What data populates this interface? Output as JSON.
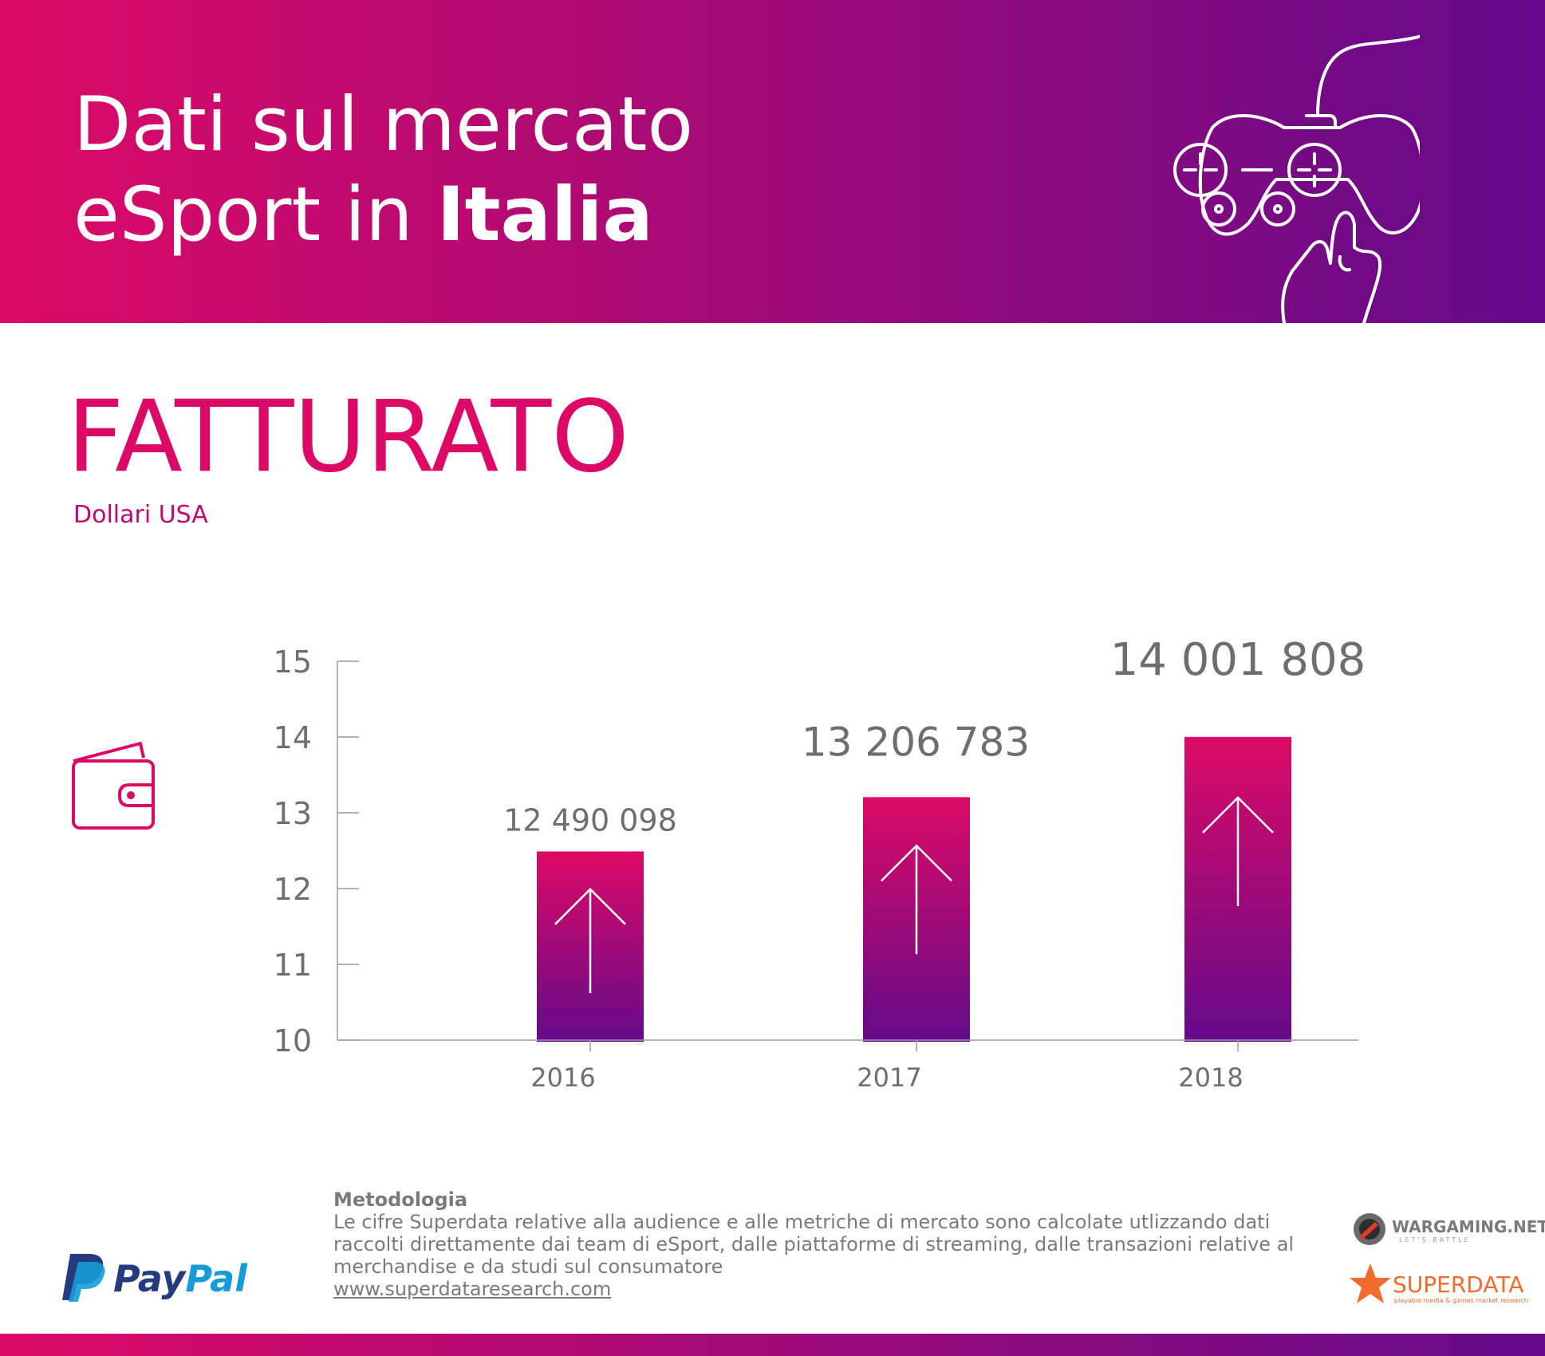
{
  "header": {
    "title_line1": "Dati sul mercato",
    "title_line2_prefix": "eSport in ",
    "title_line2_bold": "Italia"
  },
  "section": {
    "title": "FATTURATO",
    "subtitle": "Dollari USA"
  },
  "colors": {
    "brand_pink": "#dc0a66",
    "brand_purple": "#640a8a",
    "text_gray": "#7a7a7a"
  },
  "icons": {
    "header": "game-controller-icon",
    "section": "wallet-icon",
    "bar": "arrow-up-icon"
  },
  "chart_data": {
    "type": "bar",
    "title": "FATTURATO",
    "ylabel": "Dollari USA",
    "xlabel": "",
    "categories": [
      "2016",
      "2017",
      "2018"
    ],
    "values": [
      12.490098,
      13.206783,
      14.001808
    ],
    "value_labels": [
      "12 490 098",
      "13 206 783",
      "14 001 808"
    ],
    "ylim": [
      10,
      15
    ],
    "yticks": [
      "10",
      "11",
      "12",
      "13",
      "14",
      "15"
    ],
    "grid": false,
    "legend": "none"
  },
  "methodology": {
    "title": "Metodologia",
    "text": "Le cifre Superdata relative alla audience e alle metriche di mercato sono calcolate utlizzando dati raccolti direttamente dai team di eSport, dalle piattaforme di streaming, dalle transazioni relative al merchandise e da studi sul consumatore",
    "link": "www.superdataresearch.com"
  },
  "logos": {
    "paypal_pay": "Pay",
    "paypal_pal": "Pal",
    "wargaming": "WARGAMING.NET",
    "wargaming_tagline": "LET'S BATTLE",
    "superdata": "SUPERDATA",
    "superdata_tagline": "playable media & games market research"
  }
}
